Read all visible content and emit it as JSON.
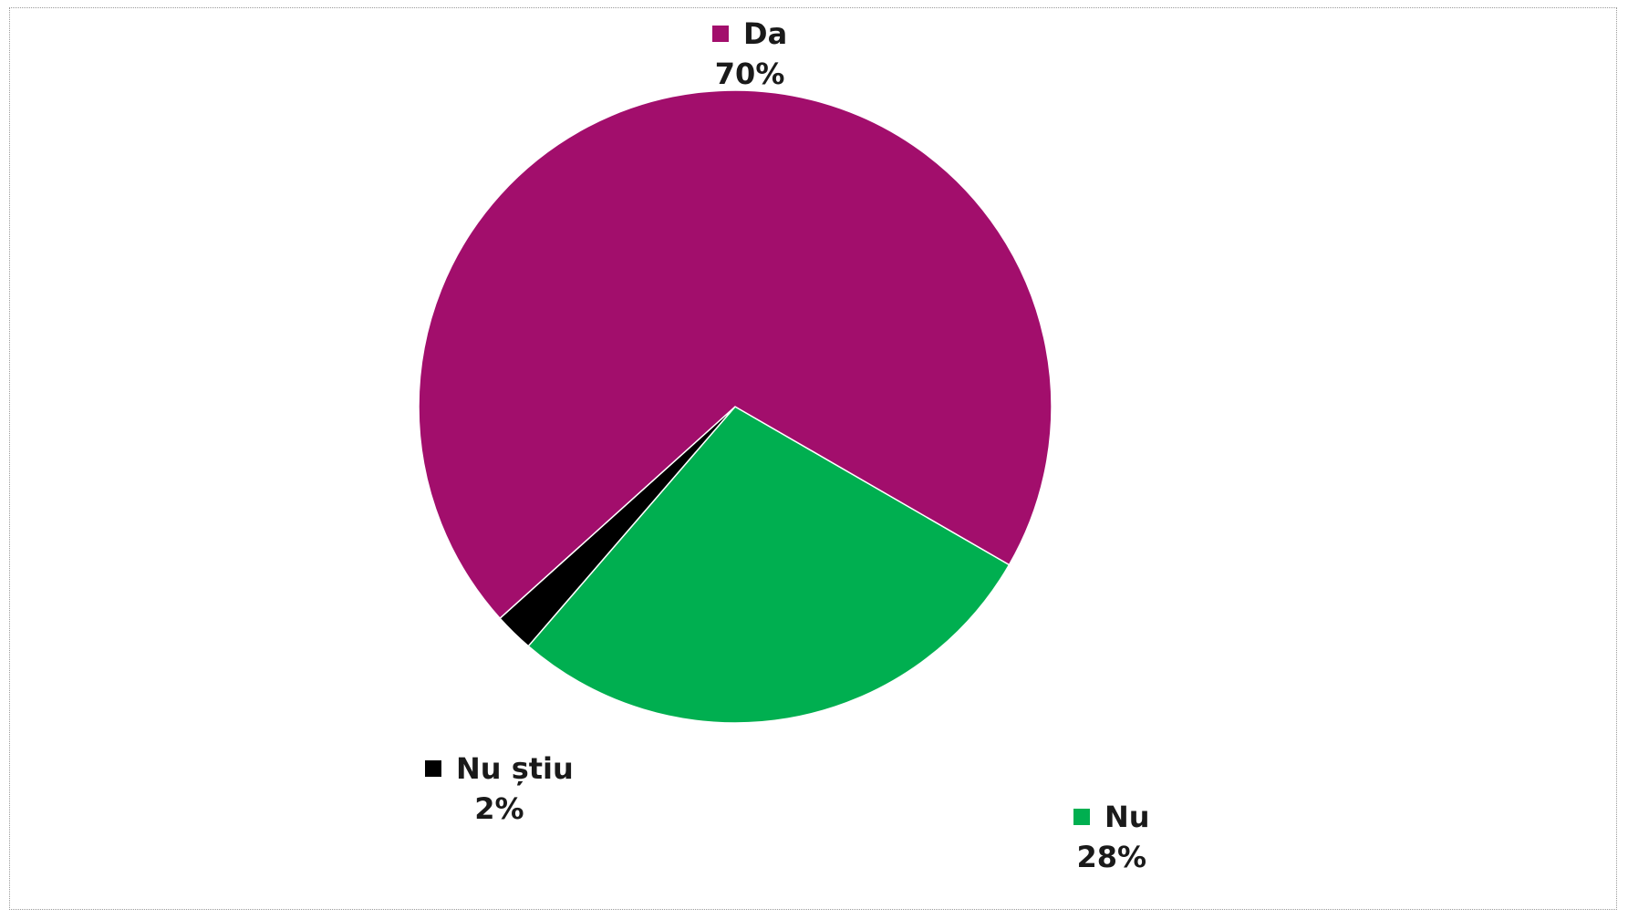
{
  "chart_data": {
    "type": "pie",
    "title": "",
    "slices": [
      {
        "name": "Da",
        "value": 70,
        "label": "70%",
        "color": "#A20E6C"
      },
      {
        "name": "Nu",
        "value": 28,
        "label": "28%",
        "color": "#00AF50"
      },
      {
        "name": "Nu știu",
        "value": 2,
        "label": "2%",
        "color": "#000000"
      }
    ],
    "slice_border_color": "#ffffff",
    "legend": "inline labels with color swatches"
  }
}
